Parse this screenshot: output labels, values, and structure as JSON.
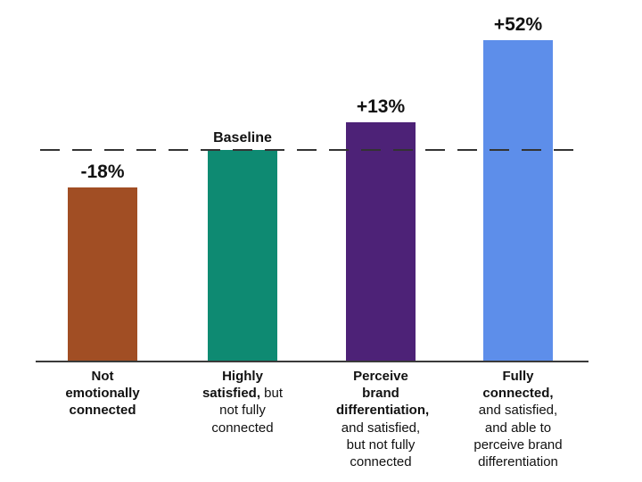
{
  "chart_data": {
    "type": "bar",
    "title": "",
    "grid": false,
    "legend": false,
    "ylim": [
      0,
      160
    ],
    "baseline_value": 100,
    "baseline_line": {
      "style": "dashed",
      "at_value": 100,
      "color": "#333333"
    },
    "categories": [
      "Not emotionally connected",
      "Highly satisfied, but not fully connected",
      "Perceive brand differentiation, and satisfied, but not fully connected",
      "Fully connected, and satisfied, and able to perceive brand differentiation"
    ],
    "values": [
      82,
      100,
      113,
      152
    ],
    "deltas_vs_baseline_pct": [
      -18,
      0,
      13,
      52
    ],
    "bars": [
      {
        "value_label": "-18%",
        "relative_value": 82,
        "color": "#A14E24",
        "category_bold": "Not emotionally connected",
        "category_rest": ""
      },
      {
        "value_label": "Baseline",
        "relative_value": 100,
        "color": "#0E8A72",
        "category_bold": "Highly satisfied,",
        "category_rest": "but not fully connected"
      },
      {
        "value_label": "+13%",
        "relative_value": 113,
        "color": "#4D2277",
        "category_bold": "Perceive brand differentiation,",
        "category_rest": "and satisfied, but not fully connected"
      },
      {
        "value_label": "+52%",
        "relative_value": 152,
        "color": "#5D8EEA",
        "category_bold": "Fully connected,",
        "category_rest": "and satisfied, and able to perceive brand differentiation"
      }
    ]
  }
}
